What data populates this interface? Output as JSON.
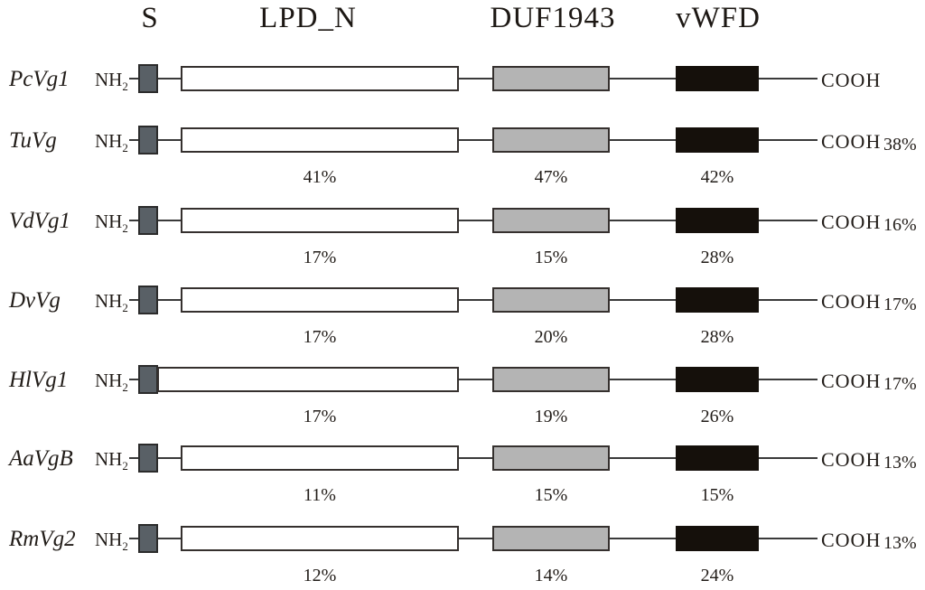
{
  "figure_type": "protein-domain-architecture",
  "column_headers": [
    {
      "label": "S"
    },
    {
      "label": "LPD_N"
    },
    {
      "label": "DUF1943"
    },
    {
      "label": "vWFD"
    }
  ],
  "terminus": {
    "nh2_main": "NH",
    "nh2_sub": "2",
    "cooh": "COOH"
  },
  "domain_legend": {
    "signal": {
      "label": "S",
      "fill": "#596066"
    },
    "lpd_n": {
      "label": "LPD_N",
      "fill": "#ffffff"
    },
    "duf1943": {
      "label": "DUF1943",
      "fill": "#b4b4b4"
    },
    "vwfd": {
      "label": "vWFD",
      "fill": "#15100b"
    }
  },
  "line_color": "#3a3a3a",
  "proteins": [
    {
      "name": "PcVg1",
      "signal_adjacent_to_lpd_n": false,
      "identities": {
        "lpd_n": "",
        "duf1943": "",
        "vwfd": ""
      },
      "overall": ""
    },
    {
      "name": "TuVg",
      "signal_adjacent_to_lpd_n": false,
      "identities": {
        "lpd_n": "41%",
        "duf1943": "47%",
        "vwfd": "42%"
      },
      "overall": "38%"
    },
    {
      "name": "VdVg1",
      "signal_adjacent_to_lpd_n": false,
      "identities": {
        "lpd_n": "17%",
        "duf1943": "15%",
        "vwfd": "28%"
      },
      "overall": "16%"
    },
    {
      "name": "DvVg",
      "signal_adjacent_to_lpd_n": false,
      "identities": {
        "lpd_n": "17%",
        "duf1943": "20%",
        "vwfd": "28%"
      },
      "overall": "17%"
    },
    {
      "name": "HlVg1",
      "signal_adjacent_to_lpd_n": true,
      "identities": {
        "lpd_n": "17%",
        "duf1943": "19%",
        "vwfd": "26%"
      },
      "overall": "17%"
    },
    {
      "name": "AaVgB",
      "signal_adjacent_to_lpd_n": false,
      "identities": {
        "lpd_n": "11%",
        "duf1943": "15%",
        "vwfd": "15%"
      },
      "overall": "13%"
    },
    {
      "name": "RmVg2",
      "signal_adjacent_to_lpd_n": false,
      "identities": {
        "lpd_n": "12%",
        "duf1943": "14%",
        "vwfd": "24%"
      },
      "overall": "13%"
    }
  ]
}
